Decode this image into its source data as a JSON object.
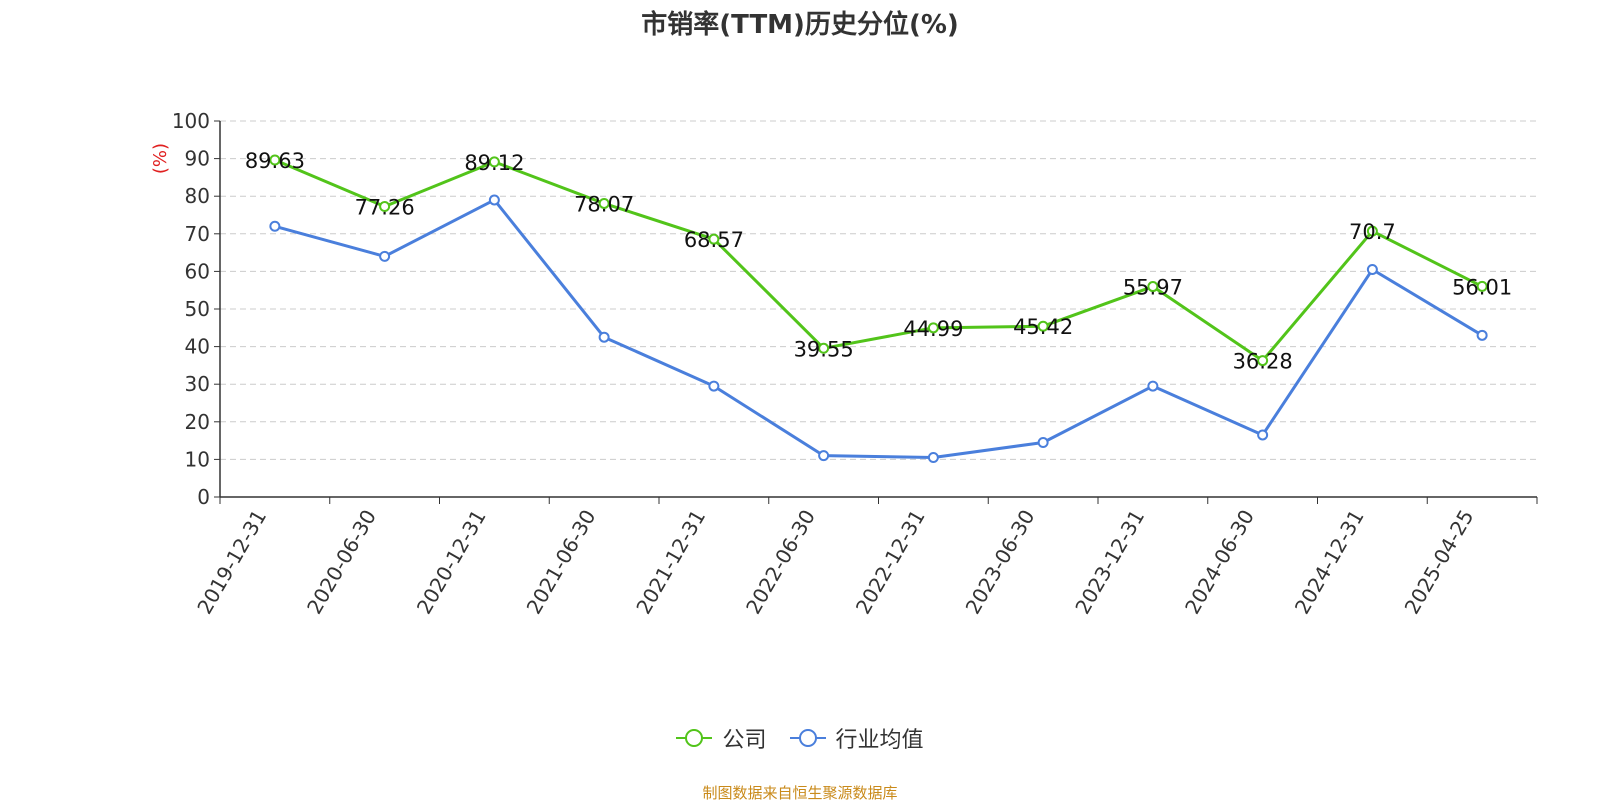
{
  "title": "市销率(TTM)历史分位(%)",
  "footer": "制图数据来自恒生聚源数据库",
  "chart_data": {
    "type": "line",
    "title": "市销率(TTM)历史分位(%)",
    "ylabel": "(%)",
    "xlabel": "",
    "ylim": [
      0,
      100
    ],
    "yticks": [
      0,
      10,
      20,
      30,
      40,
      50,
      60,
      70,
      80,
      90,
      100
    ],
    "grid": "horizontal dashed",
    "legend_position": "bottom-center",
    "categories": [
      "2019-12-31",
      "2020-06-30",
      "2020-12-31",
      "2021-06-30",
      "2021-12-31",
      "2022-06-30",
      "2022-12-31",
      "2023-06-30",
      "2023-12-31",
      "2024-06-30",
      "2024-12-31",
      "2025-04-25"
    ],
    "series": [
      {
        "name": "公司",
        "color": "#52c41a",
        "values": [
          89.63,
          77.26,
          89.12,
          78.07,
          68.57,
          39.55,
          44.99,
          45.42,
          55.97,
          36.28,
          70.7,
          56.01
        ],
        "labels": [
          "89.63",
          "77.26",
          "89.12",
          "78.07",
          "68.57",
          "39.55",
          "44.99",
          "45.42",
          "55.97",
          "36.28",
          "70.7",
          "56.01"
        ]
      },
      {
        "name": "行业均值",
        "color": "#4a7fdc",
        "values": [
          72.0,
          64.0,
          79.0,
          42.5,
          29.5,
          11.0,
          10.5,
          14.5,
          29.5,
          16.5,
          60.5,
          43.0
        ]
      }
    ]
  }
}
